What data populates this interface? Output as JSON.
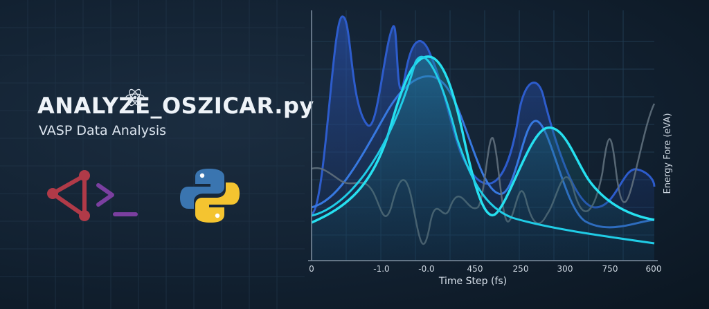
{
  "header": {
    "title": "ANALYZE_OSZICAR.py",
    "subtitle": "VASP Data Analysis"
  },
  "icons": [
    {
      "name": "terminal-share-icon",
      "colors": [
        "#b03a48",
        "#7b3fa0"
      ]
    },
    {
      "name": "python-logo-icon",
      "colors": [
        "#3a75b0",
        "#f4c430"
      ]
    }
  ],
  "colors": {
    "background": "#122131",
    "curve_dark": "#2d5ccc",
    "curve_cyan": "#26e0f0",
    "curve_gray": "#5f6f7c"
  },
  "chart_data": {
    "type": "line",
    "xlabel": "Time Step (fs)",
    "ylabel": "Energy Fore (eVA)",
    "x_tick_labels": [
      "0",
      "-1.0",
      "-0.0",
      "450",
      "250",
      "300",
      "750",
      "600"
    ],
    "grid": true
  }
}
